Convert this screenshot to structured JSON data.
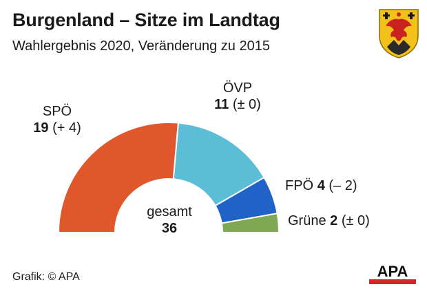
{
  "header": {
    "title": "Burgenland – Sitze im Landtag",
    "subtitle": "Wahlergebnis 2020, Veränderung zu 2015"
  },
  "chart_data": {
    "type": "pie",
    "variant": "half-donut",
    "total_label": "gesamt",
    "total": 36,
    "categories": [
      "SPÖ",
      "ÖVP",
      "FPÖ",
      "Grüne"
    ],
    "values": [
      19,
      11,
      4,
      2
    ],
    "changes": [
      "(+ 4)",
      "(± 0)",
      "(– 2)",
      "(± 0)"
    ],
    "colors": [
      "#e0572c",
      "#5bbdd6",
      "#1f63c8",
      "#7ea853"
    ]
  },
  "footer": {
    "credit": "Grafik: © APA",
    "logo_text": "APA",
    "crest_icon": "burgenland-coat-of-arms-icon"
  }
}
